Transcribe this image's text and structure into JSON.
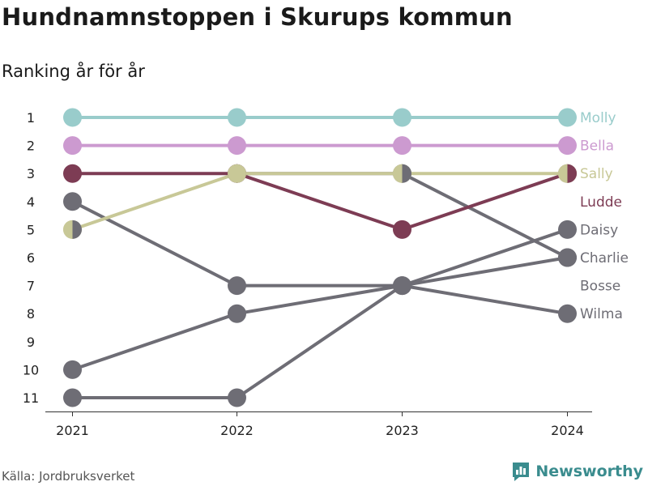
{
  "header": {
    "title": "Hundnamnstoppen i Skurups kommun",
    "subtitle": "Ranking år för år"
  },
  "footer": {
    "source": "Källa: Jordbruksverket",
    "brand": "Newsworthy",
    "brand_icon": "bar-chart-logo-icon"
  },
  "colors": {
    "Molly": "#99cccb",
    "Bella": "#cc9ad0",
    "Ludde": "#7d3c54",
    "Sally": "#c8c897",
    "grey": "#6e6d75",
    "brand": "#3a8c8e"
  },
  "chart_data": {
    "type": "line",
    "title": "Hundnamnstoppen i Skurups kommun",
    "subtitle": "Ranking år för år",
    "x": [
      "2021",
      "2022",
      "2023",
      "2024"
    ],
    "y_ticks": [
      1,
      2,
      3,
      4,
      5,
      6,
      7,
      8,
      9,
      10,
      11
    ],
    "y_inverted": true,
    "ylim": [
      1,
      11
    ],
    "legend": "direct labels at right",
    "series": [
      {
        "name": "Molly",
        "values": [
          1,
          1,
          1,
          1
        ],
        "color": "#99cccb"
      },
      {
        "name": "Bella",
        "values": [
          2,
          2,
          2,
          2
        ],
        "color": "#cc9ad0"
      },
      {
        "name": "Ludde",
        "values": [
          3,
          3,
          5,
          3
        ],
        "color": "#7d3c54"
      },
      {
        "name": "Sally",
        "values": [
          5,
          3,
          3,
          3
        ],
        "color": "#c8c897"
      },
      {
        "name": "Daisy",
        "values": [
          11,
          11,
          7,
          5
        ],
        "color": "#6e6d75"
      },
      {
        "name": "Charlie",
        "values": [
          4,
          7,
          7,
          6
        ],
        "color": "#6e6d75"
      },
      {
        "name": "Bosse",
        "values": [
          null,
          3,
          3,
          6
        ],
        "color": "#6e6d75"
      },
      {
        "name": "Wilma",
        "values": [
          10,
          8,
          7,
          8
        ],
        "color": "#6e6d75"
      }
    ],
    "labels": [
      {
        "name": "Molly",
        "rank": 1,
        "color": "#99cccb"
      },
      {
        "name": "Bella",
        "rank": 2,
        "color": "#cc9ad0"
      },
      {
        "name": "Sally",
        "rank": 3,
        "color": "#c8c897"
      },
      {
        "name": "Ludde",
        "rank": 4,
        "color": "#7d3c54"
      },
      {
        "name": "Daisy",
        "rank": 5,
        "color": "#6e6d75"
      },
      {
        "name": "Charlie",
        "rank": 6,
        "color": "#6e6d75"
      },
      {
        "name": "Bosse",
        "rank": 7,
        "color": "#6e6d75"
      },
      {
        "name": "Wilma",
        "rank": 8,
        "color": "#6e6d75"
      }
    ],
    "halves": [
      {
        "x": "2021",
        "rank": 5,
        "left": "#c8c897",
        "right": "#6e6d75"
      },
      {
        "x": "2023",
        "rank": 3,
        "left": "#c8c897",
        "right": "#6e6d75"
      },
      {
        "x": "2024",
        "rank": 3,
        "left": "#c8c897",
        "right": "#7d3c54"
      }
    ]
  }
}
